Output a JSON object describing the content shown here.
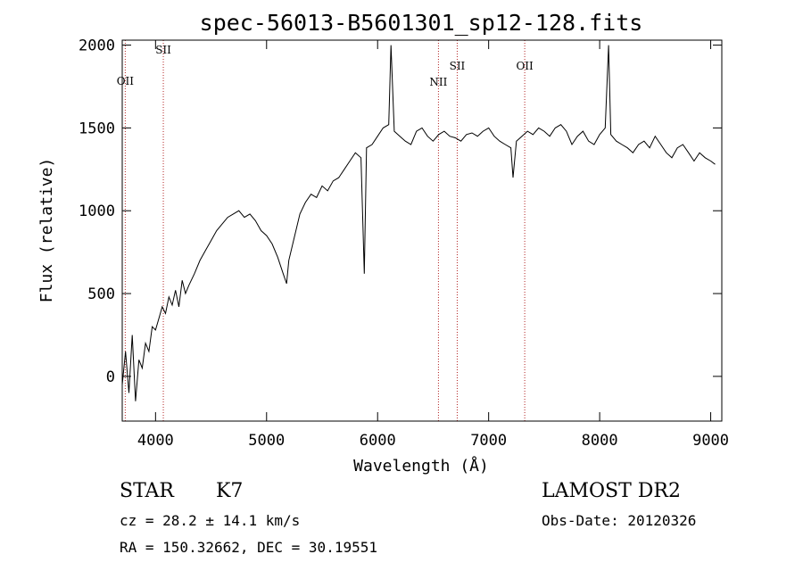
{
  "chart_data": {
    "type": "line",
    "title": "spec-56013-B5601301_sp12-128.fits",
    "xlabel": "Wavelength (Å)",
    "ylabel": "Flux (relative)",
    "xlim": [
      3700,
      9100
    ],
    "ylim": [
      -270,
      2030
    ],
    "x_ticks": [
      4000,
      5000,
      6000,
      7000,
      8000,
      9000
    ],
    "y_ticks": [
      0,
      500,
      1000,
      1500,
      2000
    ],
    "grid": false,
    "spectral_lines": [
      {
        "label": "OII",
        "x": 3727
      },
      {
        "label": "SII",
        "x": 4070
      },
      {
        "label": "NII",
        "x": 6548
      },
      {
        "label": "SII",
        "x": 6717
      },
      {
        "label": "OII",
        "x": 7325
      }
    ],
    "series": [
      {
        "color": "#000000",
        "x": [
          3700,
          3730,
          3760,
          3790,
          3820,
          3850,
          3880,
          3910,
          3940,
          3970,
          4000,
          4030,
          4060,
          4090,
          4120,
          4150,
          4180,
          4210,
          4240,
          4270,
          4300,
          4350,
          4400,
          4450,
          4500,
          4550,
          4600,
          4650,
          4700,
          4750,
          4800,
          4850,
          4900,
          4950,
          5000,
          5050,
          5100,
          5150,
          5180,
          5200,
          5250,
          5300,
          5350,
          5400,
          5450,
          5500,
          5550,
          5600,
          5650,
          5700,
          5750,
          5800,
          5850,
          5880,
          5900,
          5950,
          6000,
          6050,
          6100,
          6120,
          6150,
          6200,
          6250,
          6300,
          6350,
          6400,
          6450,
          6500,
          6550,
          6600,
          6650,
          6700,
          6750,
          6800,
          6850,
          6900,
          6950,
          7000,
          7050,
          7100,
          7150,
          7200,
          7220,
          7250,
          7300,
          7350,
          7400,
          7450,
          7500,
          7550,
          7600,
          7650,
          7700,
          7750,
          7800,
          7850,
          7900,
          7950,
          8000,
          8050,
          8080,
          8100,
          8150,
          8200,
          8250,
          8300,
          8350,
          8400,
          8450,
          8500,
          8550,
          8600,
          8650,
          8700,
          8750,
          8800,
          8850,
          8900,
          8950,
          9000,
          9040
        ],
        "y": [
          -50,
          150,
          -100,
          250,
          -150,
          100,
          50,
          200,
          150,
          300,
          280,
          350,
          420,
          380,
          480,
          430,
          520,
          420,
          580,
          500,
          550,
          620,
          700,
          760,
          820,
          880,
          920,
          960,
          980,
          1000,
          960,
          980,
          940,
          880,
          850,
          800,
          720,
          620,
          560,
          700,
          840,
          980,
          1050,
          1100,
          1080,
          1150,
          1120,
          1180,
          1200,
          1250,
          1300,
          1350,
          1320,
          620,
          1380,
          1400,
          1450,
          1500,
          1520,
          2000,
          1480,
          1450,
          1420,
          1400,
          1480,
          1500,
          1450,
          1420,
          1460,
          1480,
          1450,
          1440,
          1420,
          1460,
          1470,
          1450,
          1480,
          1500,
          1450,
          1420,
          1400,
          1380,
          1200,
          1420,
          1450,
          1480,
          1460,
          1500,
          1480,
          1450,
          1500,
          1520,
          1480,
          1400,
          1450,
          1480,
          1420,
          1400,
          1460,
          1500,
          2000,
          1460,
          1420,
          1400,
          1380,
          1350,
          1400,
          1420,
          1380,
          1450,
          1400,
          1350,
          1320,
          1380,
          1400,
          1350,
          1300,
          1350,
          1320,
          1300,
          1280
        ]
      }
    ]
  },
  "info": {
    "object_type": "STAR",
    "subclass": "K7",
    "cz": "cz = 28.2 ± 14.1 km/s",
    "coords": "RA = 150.32662, DEC =  30.19551",
    "survey": "LAMOST DR2",
    "obs_date": "Obs-Date: 20120326"
  }
}
